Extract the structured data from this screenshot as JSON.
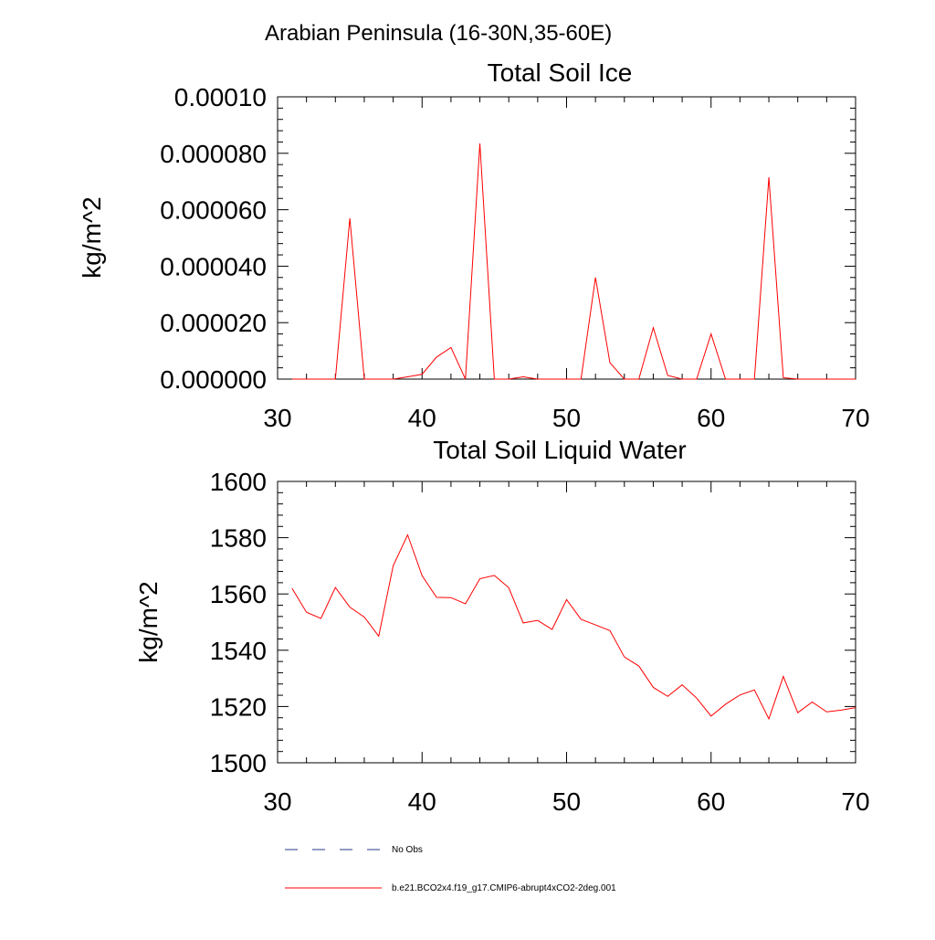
{
  "figure": {
    "title": "Arabian Peninsula (16-30N,35-60E)"
  },
  "colors": {
    "series": "#ff0000",
    "obs": "#2b3a8c",
    "axis": "#000000"
  },
  "legend": {
    "items": [
      {
        "label": "No Obs",
        "style": "dashed",
        "color": "#2b3a8c"
      },
      {
        "label": "b.e21.BCO2x4.f19_g17.CMIP6-abrupt4xCO2-2deg.001",
        "style": "solid",
        "color": "#ff0000"
      }
    ]
  },
  "chart_data": [
    {
      "type": "line",
      "title": "Total Soil Ice",
      "xlabel": "",
      "ylabel": "kg/m^2",
      "xlim": [
        30,
        70
      ],
      "ylim": [
        0,
        0.0001
      ],
      "xticks": [
        30,
        40,
        50,
        60,
        70
      ],
      "xtick_labels": [
        "30",
        "40",
        "50",
        "60",
        "70"
      ],
      "yticks": [
        0,
        2e-05,
        4e-05,
        6e-05,
        8e-05,
        0.0001
      ],
      "ytick_labels": [
        "0.000000",
        "0.000020",
        "0.000040",
        "0.000060",
        "0.000080",
        "0.00010"
      ],
      "x": [
        31,
        32,
        33,
        34,
        35,
        36,
        37,
        38,
        39,
        40,
        41,
        42,
        43,
        44,
        45,
        46,
        47,
        48,
        49,
        50,
        51,
        52,
        53,
        54,
        55,
        56,
        57,
        58,
        59,
        60,
        61,
        62,
        63,
        64,
        65,
        66,
        67,
        68,
        69,
        70
      ],
      "series": [
        {
          "name": "b.e21.BCO2x4.f19_g17.CMIP6-abrupt4xCO2-2deg.001",
          "values": [
            0,
            0,
            0,
            0,
            5.7e-05,
            0,
            0,
            0,
            8e-07,
            1.7e-06,
            7.8e-06,
            1.12e-05,
            0,
            8.35e-05,
            0,
            0,
            8e-07,
            0,
            0,
            0,
            0,
            3.6e-05,
            5.8e-06,
            0,
            0,
            1.82e-05,
            1.3e-06,
            0,
            0,
            1.6e-05,
            0,
            0,
            0,
            7.15e-05,
            5e-07,
            0,
            0,
            0,
            0,
            0
          ]
        }
      ]
    },
    {
      "type": "line",
      "title": "Total Soil Liquid Water",
      "xlabel": "",
      "ylabel": "kg/m^2",
      "xlim": [
        30,
        70
      ],
      "ylim": [
        1500,
        1600
      ],
      "xticks": [
        30,
        40,
        50,
        60,
        70
      ],
      "xtick_labels": [
        "30",
        "40",
        "50",
        "60",
        "70"
      ],
      "yticks": [
        1500,
        1520,
        1540,
        1560,
        1580,
        1600
      ],
      "ytick_labels": [
        "1500",
        "1520",
        "1540",
        "1560",
        "1580",
        "1600"
      ],
      "x": [
        31,
        32,
        33,
        34,
        35,
        36,
        37,
        38,
        39,
        40,
        41,
        42,
        43,
        44,
        45,
        46,
        47,
        48,
        49,
        50,
        51,
        52,
        53,
        54,
        55,
        56,
        57,
        58,
        59,
        60,
        61,
        62,
        63,
        64,
        65,
        66,
        67,
        68,
        69,
        70
      ],
      "series": [
        {
          "name": "b.e21.BCO2x4.f19_g17.CMIP6-abrupt4xCO2-2deg.001",
          "values": [
            1562,
            1553.5,
            1551.3,
            1562.3,
            1555.3,
            1551.8,
            1545,
            1570,
            1581,
            1566.5,
            1558.8,
            1558.7,
            1556.5,
            1565.4,
            1566.6,
            1562.2,
            1549.7,
            1550.6,
            1547.4,
            1558,
            1551,
            1549,
            1547,
            1537.6,
            1534.4,
            1526.8,
            1523.6,
            1527.7,
            1523,
            1516.6,
            1520.8,
            1524.1,
            1525.9,
            1515.6,
            1530.7,
            1517.8,
            1521.6,
            1518.1,
            1518.7,
            1519.6
          ]
        }
      ]
    }
  ]
}
